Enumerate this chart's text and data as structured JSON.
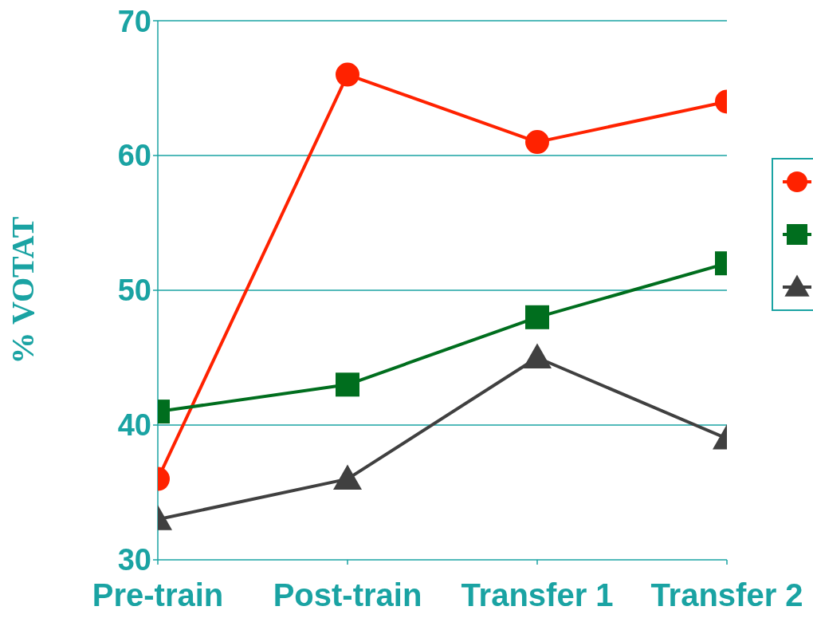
{
  "chart_data": {
    "type": "line",
    "ylabel": "% VOTAT",
    "categories": [
      "Pre-train",
      "Post-train",
      "Transfer 1",
      "Transfer 2"
    ],
    "series": [
      {
        "color": "#ff2200",
        "marker": "circle",
        "values": [
          36,
          66,
          61,
          64
        ]
      },
      {
        "color": "#006e1e",
        "marker": "square",
        "values": [
          41,
          43,
          48,
          52
        ]
      },
      {
        "color": "#404040",
        "marker": "triangle",
        "values": [
          33,
          36,
          45,
          39
        ]
      }
    ],
    "ylim": [
      30,
      70
    ],
    "yticks": [
      30,
      40,
      50,
      60,
      70
    ],
    "grid": "y",
    "line_style": "solid"
  }
}
